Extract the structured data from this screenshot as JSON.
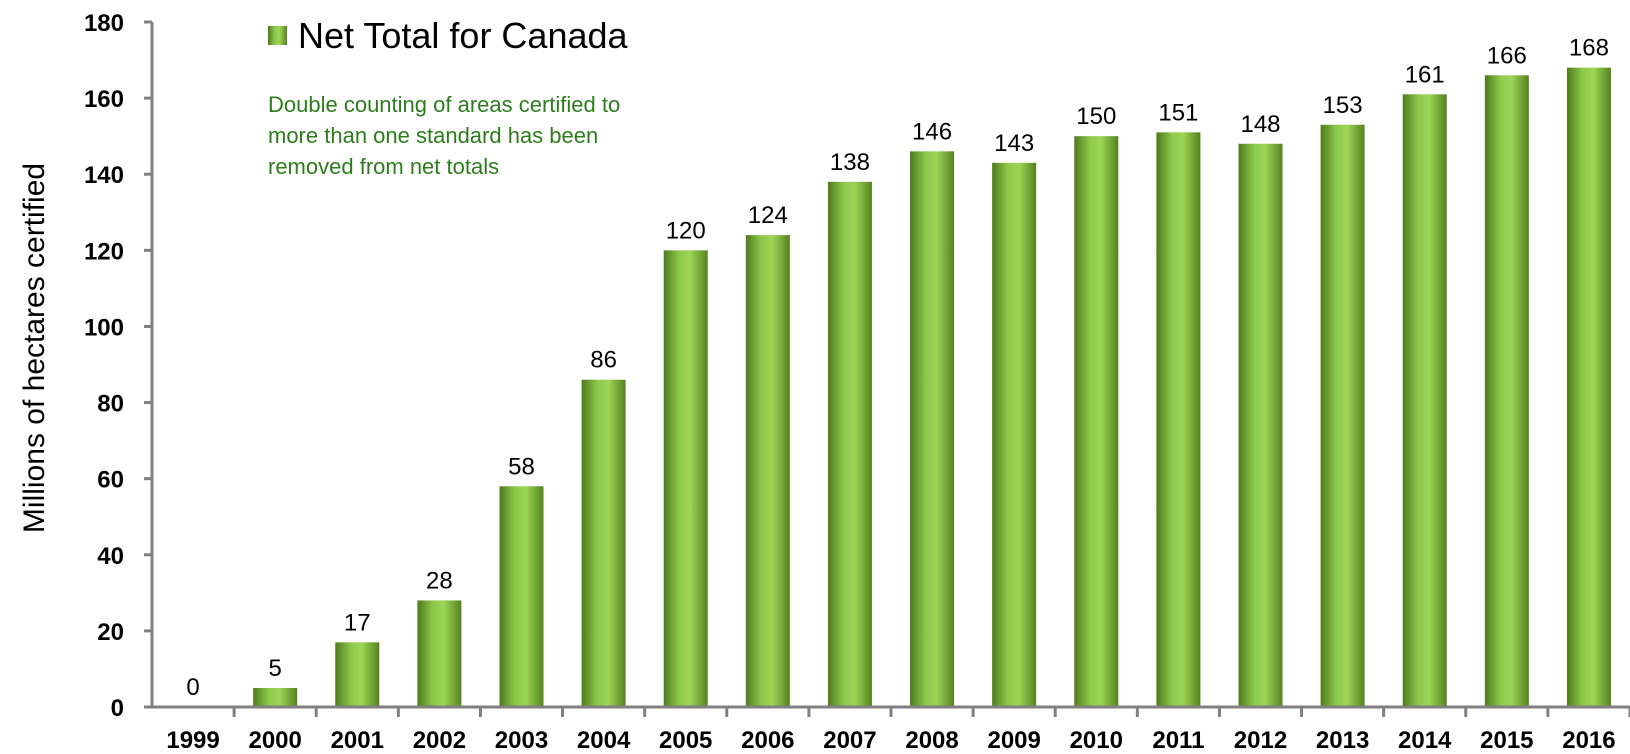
{
  "chart_data": {
    "type": "bar",
    "categories": [
      "1999",
      "2000",
      "2001",
      "2002",
      "2003",
      "2004",
      "2005",
      "2006",
      "2007",
      "2008",
      "2009",
      "2010",
      "2011",
      "2012",
      "2013",
      "2014",
      "2015",
      "2016"
    ],
    "values": [
      0,
      5,
      17,
      28,
      58,
      86,
      120,
      124,
      138,
      146,
      143,
      150,
      151,
      148,
      153,
      161,
      166,
      168
    ],
    "series": [
      {
        "name": "Net Total for Canada",
        "values": [
          0,
          5,
          17,
          28,
          58,
          86,
          120,
          124,
          138,
          146,
          143,
          150,
          151,
          148,
          153,
          161,
          166,
          168
        ]
      }
    ],
    "ylabel": "Millions of hectares certified",
    "xlabel": "",
    "ylim": [
      0,
      180
    ],
    "yticks": [
      "0",
      "20",
      "40",
      "60",
      "80",
      "100",
      "120",
      "140",
      "160",
      "180"
    ],
    "legend": {
      "label": "Net Total for Canada",
      "position": "top-left"
    },
    "annotation": [
      "Double counting of areas certified to",
      "more than one standard has been",
      "removed from net totals"
    ],
    "grid": false,
    "colors": {
      "bar_dark": "#4f7a1c",
      "bar_light": "#9dd656",
      "note": "#2d7d1e",
      "axis": "#808080"
    }
  }
}
